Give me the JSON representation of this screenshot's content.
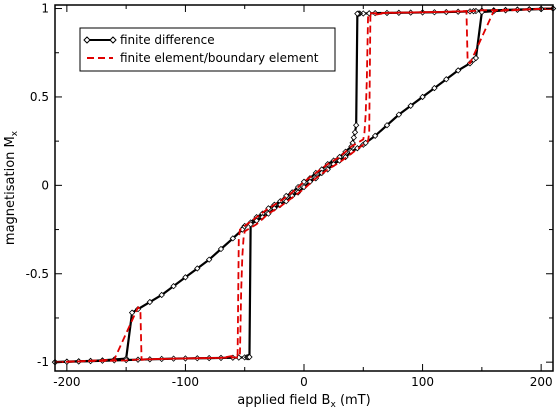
{
  "chart_data": {
    "type": "line",
    "title": "",
    "xlabel": {
      "prefix": "applied field B",
      "sub": "x",
      "suffix": " (mT)"
    },
    "ylabel": {
      "prefix": "magnetisation M",
      "sub": "x"
    },
    "xlim": [
      -210,
      210
    ],
    "ylim": [
      -1.05,
      1.02
    ],
    "x_ticks": [
      -200,
      -100,
      0,
      100,
      200
    ],
    "x_tick_labels": [
      "-200",
      "-100",
      "0",
      "100",
      "200"
    ],
    "y_ticks": [
      -1,
      -0.5,
      0,
      0.5,
      1
    ],
    "y_tick_labels": [
      "-1",
      "-0.5",
      "0",
      "0.5",
      "1"
    ],
    "grid": false,
    "legend_position": "top-left",
    "series": [
      {
        "name": "finite difference",
        "color": "#000000",
        "style": "solid-with-diamond-markers",
        "descending": {
          "x": [
            210,
            200,
            190,
            180,
            170,
            160,
            150,
            145,
            143,
            140,
            130,
            120,
            110,
            100,
            90,
            80,
            70,
            60,
            55,
            50,
            47,
            46,
            45,
            44,
            43,
            42,
            41,
            40,
            35,
            30,
            25,
            20,
            15,
            10,
            5,
            0,
            -5,
            -10,
            -15,
            -20,
            -25,
            -30,
            -35,
            -40,
            -45,
            -50,
            -51,
            -52,
            -60,
            -70,
            -80,
            -90,
            -100,
            -110,
            -120,
            -130,
            -140,
            -145,
            -150,
            -160,
            -170,
            -180,
            -190,
            -200,
            -210
          ],
          "y": [
            1.0,
            0.998,
            0.996,
            0.994,
            0.992,
            0.99,
            0.988,
            0.986,
            0.985,
            0.984,
            0.982,
            0.98,
            0.979,
            0.978,
            0.977,
            0.976,
            0.975,
            0.974,
            0.973,
            0.972,
            0.972,
            0.971,
            0.971,
            0.34,
            0.3,
            0.27,
            0.24,
            0.22,
            0.19,
            0.16,
            0.14,
            0.12,
            0.09,
            0.07,
            0.04,
            0.02,
            -0.01,
            -0.04,
            -0.06,
            -0.09,
            -0.11,
            -0.13,
            -0.16,
            -0.18,
            -0.21,
            -0.23,
            -0.24,
            -0.25,
            -0.3,
            -0.36,
            -0.42,
            -0.47,
            -0.52,
            -0.57,
            -0.62,
            -0.66,
            -0.7,
            -0.72,
            -0.98,
            -0.985,
            -0.99,
            -0.993,
            -0.995,
            -0.997,
            -1.0
          ]
        },
        "ascending": {
          "x": [
            -210,
            -200,
            -190,
            -180,
            -170,
            -160,
            -150,
            -140,
            -130,
            -120,
            -110,
            -100,
            -90,
            -80,
            -70,
            -60,
            -55,
            -50,
            -48,
            -47,
            -46,
            -45,
            -40,
            -35,
            -30,
            -25,
            -20,
            -15,
            -10,
            -5,
            0,
            5,
            10,
            15,
            20,
            25,
            30,
            35,
            40,
            45,
            50,
            52,
            60,
            70,
            80,
            90,
            100,
            110,
            120,
            130,
            140,
            143,
            145,
            150,
            160,
            170,
            180,
            190,
            200,
            210
          ],
          "y": [
            -1.0,
            -0.998,
            -0.996,
            -0.994,
            -0.992,
            -0.99,
            -0.988,
            -0.986,
            -0.984,
            -0.982,
            -0.98,
            -0.979,
            -0.978,
            -0.977,
            -0.976,
            -0.975,
            -0.974,
            -0.973,
            -0.972,
            -0.972,
            -0.971,
            -0.22,
            -0.2,
            -0.18,
            -0.16,
            -0.13,
            -0.11,
            -0.09,
            -0.06,
            -0.04,
            -0.01,
            0.02,
            0.04,
            0.07,
            0.09,
            0.12,
            0.14,
            0.16,
            0.19,
            0.21,
            0.23,
            0.24,
            0.28,
            0.34,
            0.4,
            0.45,
            0.5,
            0.55,
            0.6,
            0.65,
            0.69,
            0.71,
            0.72,
            0.98,
            0.985,
            0.99,
            0.993,
            0.995,
            0.997,
            1.0
          ]
        }
      },
      {
        "name": "finite element/boundary element",
        "color": "#e00000",
        "style": "dashed",
        "descending": {
          "x": [
            210,
            180,
            150,
            140,
            130,
            100,
            70,
            55,
            54,
            53,
            52,
            51,
            50,
            40,
            30,
            20,
            10,
            0,
            -10,
            -20,
            -30,
            -40,
            -50,
            -54,
            -55,
            -56,
            -70,
            -90,
            -110,
            -130,
            -136,
            -137,
            -138,
            -140,
            -160,
            -190,
            -210
          ],
          "y": [
            1.0,
            0.994,
            0.99,
            0.985,
            0.983,
            0.979,
            0.975,
            0.973,
            0.95,
            0.6,
            0.4,
            0.3,
            0.26,
            0.22,
            0.16,
            0.12,
            0.07,
            0.02,
            -0.04,
            -0.09,
            -0.13,
            -0.18,
            -0.23,
            -0.25,
            -0.3,
            -0.96,
            -0.976,
            -0.978,
            -0.98,
            -0.984,
            -0.986,
            -0.987,
            -0.7,
            -0.69,
            -0.985,
            -0.995,
            -1.0
          ]
        },
        "ascending": {
          "x": [
            -210,
            -180,
            -150,
            -140,
            -130,
            -100,
            -70,
            -55,
            -54,
            -53,
            -52,
            -51,
            -50,
            -40,
            -30,
            -20,
            -10,
            0,
            10,
            20,
            30,
            40,
            50,
            54,
            55,
            56,
            70,
            90,
            110,
            130,
            136,
            137,
            138,
            140,
            160,
            190,
            210
          ],
          "y": [
            -1.0,
            -0.994,
            -0.99,
            -0.985,
            -0.983,
            -0.979,
            -0.975,
            -0.973,
            -0.95,
            -0.6,
            -0.4,
            -0.3,
            -0.26,
            -0.22,
            -0.16,
            -0.12,
            -0.07,
            -0.02,
            0.04,
            0.09,
            0.13,
            0.18,
            0.23,
            0.25,
            0.3,
            0.96,
            0.976,
            0.978,
            0.98,
            0.984,
            0.986,
            0.987,
            0.7,
            0.69,
            0.985,
            0.995,
            1.0
          ]
        }
      }
    ]
  }
}
